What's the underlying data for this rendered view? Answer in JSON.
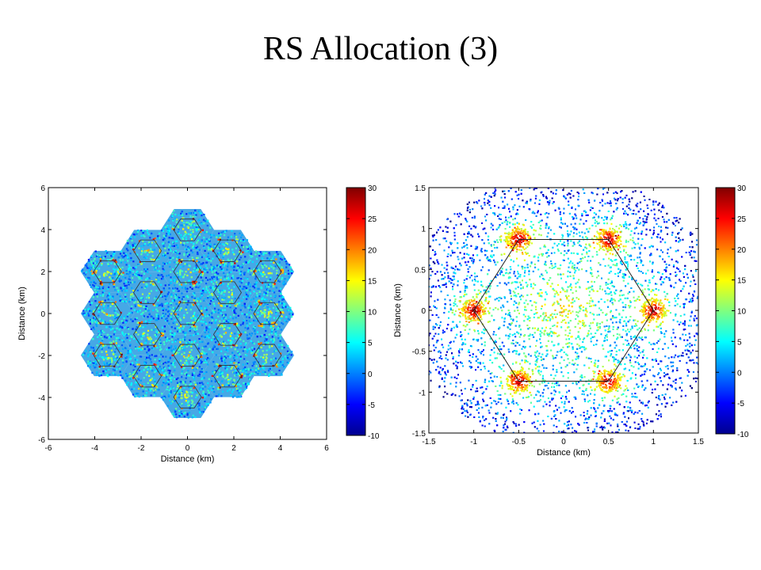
{
  "slide": {
    "title": "RS Allocation (3)"
  },
  "chart_data": [
    {
      "type": "heatmap",
      "title": "",
      "xlabel": "Distance (km)",
      "ylabel": "Distance (km)",
      "xlim": [
        -6,
        6
      ],
      "ylim": [
        -6,
        6
      ],
      "xticks": [
        -6,
        -4,
        -2,
        0,
        2,
        4,
        6
      ],
      "yticks": [
        -6,
        -4,
        -2,
        0,
        2,
        4,
        6
      ],
      "colorbar": {
        "min": -10,
        "max": 30,
        "ticks": [
          -10,
          -5,
          0,
          5,
          10,
          15,
          20,
          25,
          30
        ],
        "colormap": "jet"
      },
      "description_values": {
        "layout": "19-cell hexagonal cluster, cell radius ~1 km, 6 relay stations per cell at 0.5 km"
      }
    },
    {
      "type": "heatmap",
      "title": "",
      "xlabel": "Distance (km)",
      "ylabel": "Distance (km)",
      "xlim": [
        -1.5,
        1.5
      ],
      "ylim": [
        -1.5,
        1.5
      ],
      "xticks": [
        -1.5,
        -1,
        -0.5,
        0,
        0.5,
        1,
        1.5
      ],
      "yticks": [
        -1.5,
        -1,
        -0.5,
        0,
        0.5,
        1,
        1.5
      ],
      "colorbar": {
        "min": -10,
        "max": 30,
        "ticks": [
          -10,
          -5,
          0,
          5,
          10,
          15,
          20,
          25,
          30
        ],
        "colormap": "jet"
      },
      "hotspots": [
        [
          1,
          0
        ],
        [
          0.5,
          0.866
        ],
        [
          -0.5,
          0.866
        ],
        [
          -1,
          0
        ],
        [
          -0.5,
          -0.866
        ],
        [
          0.5,
          -0.866
        ]
      ]
    }
  ]
}
